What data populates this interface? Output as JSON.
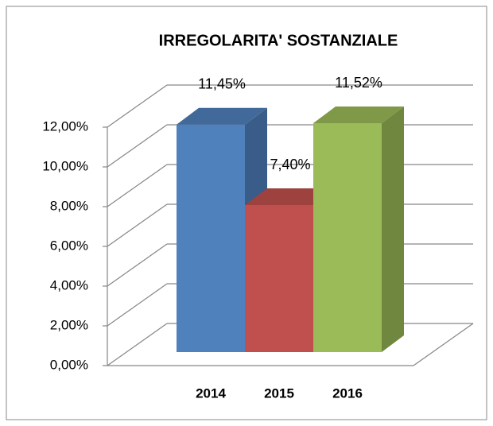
{
  "chart_data": {
    "type": "bar3d",
    "title": "IRREGOLARITA' SOSTANZIALE",
    "categories": [
      "2014",
      "2015",
      "2016"
    ],
    "values": [
      11.45,
      7.4,
      11.52
    ],
    "value_labels": [
      "11,45%",
      "7,40%",
      "11,52%"
    ],
    "colors": [
      "#4f81bd",
      "#c0504d",
      "#9bbb59"
    ],
    "ylim": [
      0,
      12
    ],
    "yticks": [
      {
        "value": 0,
        "label": "0,00%"
      },
      {
        "value": 2,
        "label": "2,00%"
      },
      {
        "value": 4,
        "label": "4,00%"
      },
      {
        "value": 6,
        "label": "6,00%"
      },
      {
        "value": 8,
        "label": "8,00%"
      },
      {
        "value": 10,
        "label": "10,00%"
      },
      {
        "value": 12,
        "label": "12,00%"
      }
    ],
    "grid": true
  }
}
